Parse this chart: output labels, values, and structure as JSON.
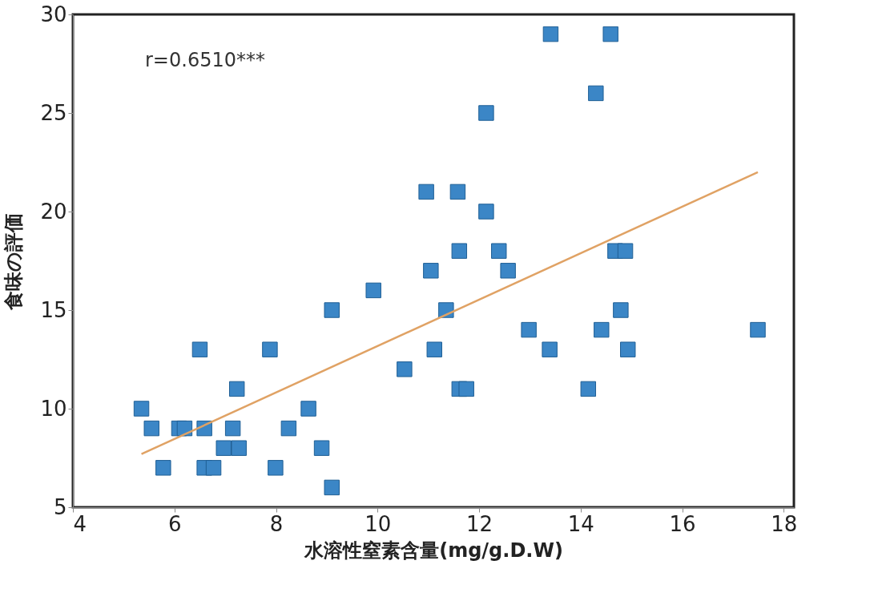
{
  "chart_data": {
    "type": "scatter",
    "xlabel": "水溶性窒素含量(mg/g.D.W)",
    "ylabel": "食味の評価",
    "xlim": [
      4,
      18.2
    ],
    "ylim": [
      5,
      30
    ],
    "xticks": [
      4,
      6,
      8,
      10,
      12,
      14,
      16,
      18
    ],
    "yticks": [
      5,
      10,
      15,
      20,
      25,
      30
    ],
    "grid": false,
    "annotations": [
      "r=0.6510***"
    ],
    "series": [
      {
        "marker": "square",
        "color": "#3b86c6",
        "x": [
          5.35,
          5.55,
          5.78,
          6.09,
          6.2,
          6.5,
          6.59,
          6.59,
          6.77,
          6.97,
          7.15,
          7.23,
          7.27,
          7.88,
          7.99,
          8.25,
          8.64,
          8.9,
          9.1,
          9.1,
          9.92,
          10.53,
          10.96,
          11.05,
          11.12,
          11.35,
          11.58,
          11.61,
          11.61,
          11.75,
          12.14,
          12.14,
          12.39,
          12.57,
          12.98,
          13.39,
          13.41,
          14.15,
          14.3,
          14.41,
          14.59,
          14.68,
          14.88,
          14.79,
          14.93,
          17.49
        ],
        "values": [
          10,
          9,
          7,
          9,
          9,
          13,
          9,
          7,
          7,
          8,
          9,
          11,
          8,
          13,
          7,
          9,
          10,
          8,
          15,
          6,
          16,
          12,
          21,
          17,
          13,
          15,
          21,
          18,
          11,
          11,
          20,
          25,
          18,
          17,
          14,
          13,
          29,
          11,
          26,
          14,
          29,
          18,
          18,
          15,
          13,
          14
        ]
      },
      {
        "type": "line",
        "color": "#e0a264",
        "x": [
          5.35,
          17.49
        ],
        "values": [
          7.7,
          22.0
        ]
      }
    ]
  }
}
